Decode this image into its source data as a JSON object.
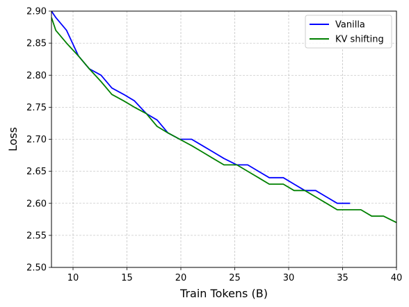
{
  "chart_data": {
    "type": "line",
    "title": "",
    "xlabel": "Train Tokens (B)",
    "ylabel": "Loss",
    "xlim": [
      8,
      40
    ],
    "ylim": [
      2.5,
      2.9
    ],
    "xticks": [
      10,
      15,
      20,
      25,
      30,
      35,
      40
    ],
    "yticks": [
      2.5,
      2.55,
      2.6,
      2.65,
      2.7,
      2.75,
      2.8,
      2.85,
      2.9
    ],
    "xtick_labels": [
      "10",
      "15",
      "20",
      "25",
      "30",
      "35",
      "40"
    ],
    "ytick_labels": [
      "2.50",
      "2.55",
      "2.60",
      "2.65",
      "2.70",
      "2.75",
      "2.80",
      "2.85",
      "2.90"
    ],
    "grid": true,
    "legend_position": "top-right",
    "series": [
      {
        "name": "Vanilla",
        "color": "#0000ff",
        "x": [
          8,
          8.4,
          9.4,
          10.5,
          11.5,
          12.6,
          13.6,
          14.7,
          15.7,
          16.8,
          17.8,
          18.8,
          19.9,
          21,
          22,
          23,
          24,
          25.2,
          26.2,
          27.2,
          28.2,
          29.5,
          30.5,
          31.5,
          32.5,
          33.5,
          34.5,
          35.7
        ],
        "y": [
          2.9,
          2.89,
          2.87,
          2.83,
          2.81,
          2.8,
          2.78,
          2.77,
          2.76,
          2.74,
          2.73,
          2.71,
          2.7,
          2.7,
          2.69,
          2.68,
          2.67,
          2.66,
          2.66,
          2.65,
          2.64,
          2.64,
          2.63,
          2.62,
          2.62,
          2.61,
          2.6,
          2.6
        ]
      },
      {
        "name": "KV shifting",
        "color": "#008000",
        "x": [
          8,
          8.4,
          9.4,
          10.5,
          11.5,
          12.6,
          13.6,
          14.7,
          15.7,
          16.8,
          17.8,
          18.8,
          19.9,
          21,
          22,
          23,
          24,
          25.2,
          26.2,
          27.2,
          28.2,
          29.5,
          30.5,
          31.5,
          32.5,
          33.5,
          34.5,
          35.7,
          36.7,
          37.7,
          38.8,
          40
        ],
        "y": [
          2.89,
          2.87,
          2.85,
          2.83,
          2.81,
          2.79,
          2.77,
          2.76,
          2.75,
          2.74,
          2.72,
          2.71,
          2.7,
          2.69,
          2.68,
          2.67,
          2.66,
          2.66,
          2.65,
          2.64,
          2.63,
          2.63,
          2.62,
          2.62,
          2.61,
          2.6,
          2.59,
          2.59,
          2.59,
          2.58,
          2.58,
          2.57
        ]
      }
    ]
  }
}
